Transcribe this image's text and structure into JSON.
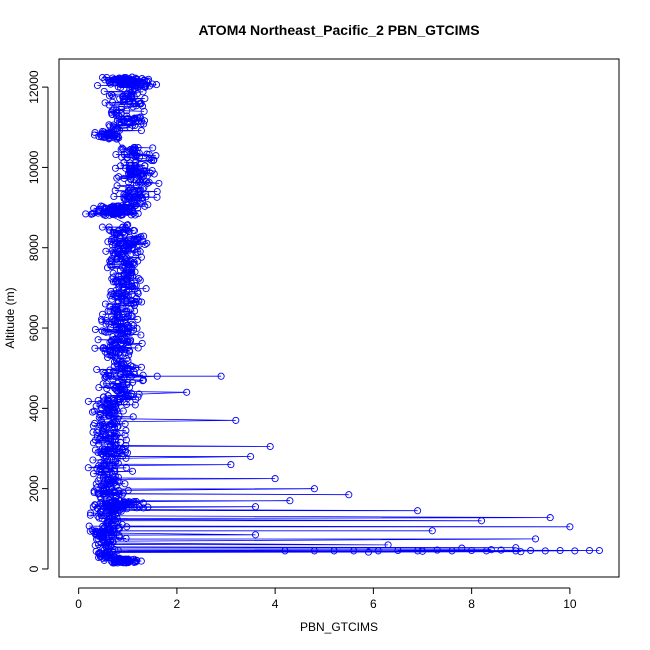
{
  "chart_data": {
    "type": "scatter",
    "title": "ATOM4 Northeast_Pacific_2 PBN_GTCIMS",
    "xlabel": "PBN_GTCIMS",
    "ylabel": "Altitude (m)",
    "xlim": [
      -0.4,
      11.0
    ],
    "ylim": [
      -200,
      12700
    ],
    "x_ticks": [
      0,
      2,
      4,
      6,
      8,
      10
    ],
    "y_ticks": [
      0,
      2000,
      4000,
      6000,
      8000,
      10000,
      12000
    ],
    "series_color": "#0000ff",
    "marker": "open-circle",
    "connected": true,
    "grid": false,
    "legend": "none",
    "clusters": [
      {
        "x_center": 0.9,
        "x_spread": 0.6,
        "y": [
          150,
          250
        ],
        "count": 60
      },
      {
        "x_center": 0.55,
        "x_spread": 0.5,
        "y": [
          250,
          1200
        ],
        "count": 110
      },
      {
        "x_center": 0.85,
        "x_spread": 0.9,
        "y": [
          1500,
          1680
        ],
        "count": 50
      },
      {
        "x_center": 0.65,
        "x_spread": 0.55,
        "y": [
          1200,
          4200
        ],
        "count": 280
      },
      {
        "x_center": 0.85,
        "x_spread": 0.6,
        "y": [
          4200,
          6500
        ],
        "count": 220
      },
      {
        "x_center": 0.95,
        "x_spread": 0.55,
        "y": [
          6500,
          8600
        ],
        "count": 200
      },
      {
        "x_center": 0.75,
        "x_spread": 0.75,
        "y": [
          8800,
          9050
        ],
        "count": 90
      },
      {
        "x_center": 1.15,
        "x_spread": 0.55,
        "y": [
          9050,
          10500
        ],
        "count": 140
      },
      {
        "x_center": 0.6,
        "x_spread": 0.4,
        "y": [
          10700,
          10900
        ],
        "count": 40
      },
      {
        "x_center": 1.0,
        "x_spread": 0.6,
        "y": [
          10900,
          12000
        ],
        "count": 90
      },
      {
        "x_center": 1.0,
        "x_spread": 0.75,
        "y": [
          12000,
          12250
        ],
        "count": 90
      }
    ],
    "excursion_points": [
      {
        "x": 1.6,
        "y": 4800
      },
      {
        "x": 2.9,
        "y": 4800
      },
      {
        "x": 2.2,
        "y": 4400
      },
      {
        "x": 3.2,
        "y": 3700
      },
      {
        "x": 3.9,
        "y": 3050
      },
      {
        "x": 3.5,
        "y": 2800
      },
      {
        "x": 3.1,
        "y": 2600
      },
      {
        "x": 4.0,
        "y": 2250
      },
      {
        "x": 4.8,
        "y": 2000
      },
      {
        "x": 5.5,
        "y": 1850
      },
      {
        "x": 4.3,
        "y": 1700
      },
      {
        "x": 3.6,
        "y": 1550
      },
      {
        "x": 6.9,
        "y": 1450
      },
      {
        "x": 9.6,
        "y": 1280
      },
      {
        "x": 8.2,
        "y": 1200
      },
      {
        "x": 10.0,
        "y": 1050
      },
      {
        "x": 7.2,
        "y": 950
      },
      {
        "x": 3.6,
        "y": 850
      },
      {
        "x": 9.3,
        "y": 750
      },
      {
        "x": 6.3,
        "y": 600
      },
      {
        "x": 8.9,
        "y": 530
      },
      {
        "x": 4.2,
        "y": 450
      },
      {
        "x": 4.8,
        "y": 450
      },
      {
        "x": 5.2,
        "y": 450
      },
      {
        "x": 5.6,
        "y": 450
      },
      {
        "x": 6.1,
        "y": 450
      },
      {
        "x": 6.5,
        "y": 460
      },
      {
        "x": 6.9,
        "y": 450
      },
      {
        "x": 7.3,
        "y": 470
      },
      {
        "x": 7.6,
        "y": 450
      },
      {
        "x": 8.0,
        "y": 460
      },
      {
        "x": 8.3,
        "y": 450
      },
      {
        "x": 8.6,
        "y": 470
      },
      {
        "x": 8.9,
        "y": 450
      },
      {
        "x": 9.2,
        "y": 460
      },
      {
        "x": 9.5,
        "y": 450
      },
      {
        "x": 9.8,
        "y": 460
      },
      {
        "x": 10.1,
        "y": 450
      },
      {
        "x": 10.4,
        "y": 460
      },
      {
        "x": 10.6,
        "y": 460
      },
      {
        "x": 7.8,
        "y": 520
      },
      {
        "x": 8.4,
        "y": 480
      },
      {
        "x": 9.0,
        "y": 430
      },
      {
        "x": 7.0,
        "y": 440
      },
      {
        "x": 5.9,
        "y": 420
      }
    ]
  }
}
